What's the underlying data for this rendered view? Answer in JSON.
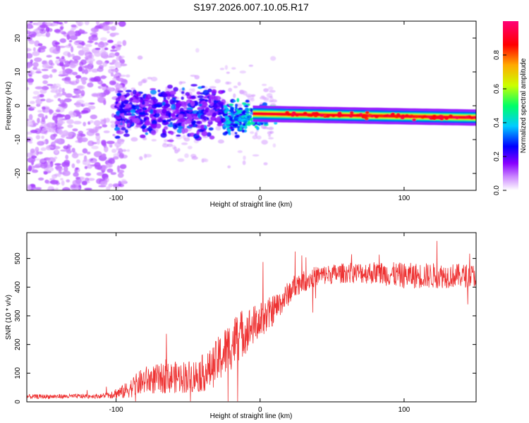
{
  "figure_title": "S197.2026.007.10.05.R17",
  "chart_data": [
    {
      "type": "heatmap",
      "title": "S197.2026.007.10.05.R17",
      "xlabel": "Height of straight line (km)",
      "ylabel": "Frequency (Hz)",
      "xlim": [
        -162,
        150
      ],
      "ylim": [
        -25,
        25
      ],
      "x_ticks": [
        -100,
        0,
        100
      ],
      "y_ticks": [
        -20,
        -10,
        0,
        10,
        20
      ],
      "colorbar": {
        "label": "Normalized spectral amplitude",
        "range": [
          0,
          1
        ],
        "ticks": [
          0.0,
          0.2,
          0.4,
          0.6,
          0.8
        ],
        "colors": [
          "#ffffff",
          "#cc88ff",
          "#8800ff",
          "#0000ff",
          "#00ccff",
          "#00ff66",
          "#ccff00",
          "#ffaa00",
          "#ff0000",
          "#ff0077"
        ]
      },
      "regions": [
        {
          "name": "noise",
          "x_range": [
            -162,
            -100
          ],
          "f_range": [
            -25,
            25
          ],
          "amplitude": 0.1
        },
        {
          "name": "scattered",
          "x_range": [
            -100,
            -25
          ],
          "f_center": -2,
          "f_spread": 7,
          "amplitude": 0.3
        },
        {
          "name": "transition",
          "x_range": [
            -25,
            15
          ],
          "f_center_start": -4,
          "f_center_end": -2,
          "amplitude": 0.6
        },
        {
          "name": "carrier",
          "x_range": [
            15,
            150
          ],
          "f_center_start": -2.5,
          "f_center_end": -3.5,
          "amplitude": 0.95
        }
      ]
    },
    {
      "type": "line",
      "xlabel": "Height of straight line (km)",
      "ylabel": "SNR (10 * v/v)",
      "xlim": [
        -162,
        150
      ],
      "ylim": [
        0,
        590
      ],
      "x_ticks": [
        -100,
        0,
        100
      ],
      "y_ticks": [
        0,
        100,
        200,
        300,
        400,
        500
      ],
      "color": "#ee3333",
      "envelope": {
        "x": [
          -162,
          -110,
          -95,
          -80,
          -60,
          -45,
          -35,
          -25,
          -15,
          -5,
          5,
          15,
          25,
          40,
          60,
          80,
          100,
          120,
          150
        ],
        "mean": [
          18,
          20,
          35,
          75,
          85,
          90,
          110,
          170,
          230,
          265,
          300,
          350,
          410,
          440,
          450,
          450,
          440,
          440,
          440
        ],
        "noise": [
          8,
          8,
          25,
          50,
          55,
          60,
          70,
          90,
          90,
          70,
          60,
          45,
          40,
          35,
          35,
          40,
          45,
          45,
          40
        ]
      }
    }
  ]
}
